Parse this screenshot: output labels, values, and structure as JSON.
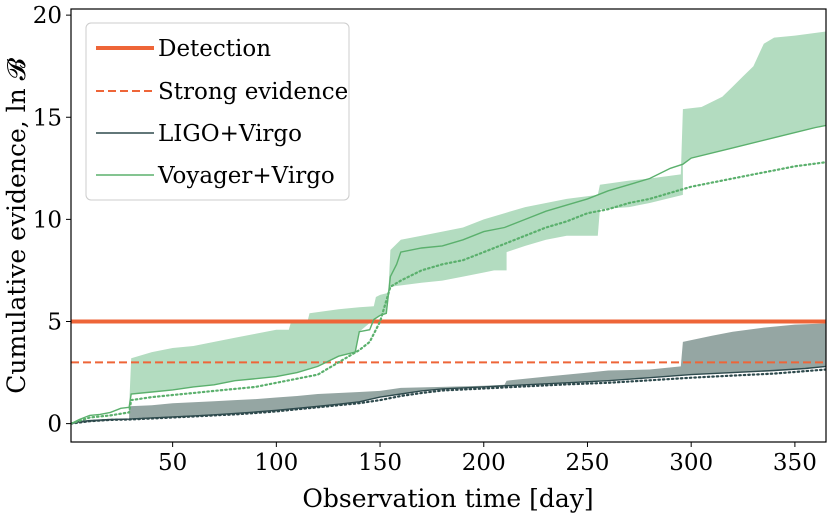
{
  "chart_data": {
    "type": "line",
    "title": "",
    "xlabel": "Observation time [day]",
    "ylabel": "Cumulative evidence, ln 𝓑",
    "xlim": [
      1,
      365
    ],
    "ylim": [
      -0.9,
      20.3
    ],
    "xticks": [
      50,
      100,
      150,
      200,
      250,
      300,
      350
    ],
    "yticks": [
      0,
      5,
      10,
      15,
      20
    ],
    "legend_position": "top-left",
    "thresholds": [
      {
        "name": "Detection",
        "value": 5,
        "style": "solid",
        "color": "#EE6538"
      },
      {
        "name": "Strong evidence",
        "value": 3,
        "style": "dashed",
        "color": "#EE6538"
      }
    ],
    "series": [
      {
        "name": "LIGO+Virgo",
        "color": "#2E4A4D",
        "band_color": "#95A6A3",
        "line": [
          [
            1,
            0
          ],
          [
            5,
            0.1
          ],
          [
            10,
            0.15
          ],
          [
            20,
            0.2
          ],
          [
            29,
            0.22
          ],
          [
            40,
            0.28
          ],
          [
            50,
            0.33
          ],
          [
            60,
            0.38
          ],
          [
            70,
            0.43
          ],
          [
            80,
            0.5
          ],
          [
            90,
            0.57
          ],
          [
            100,
            0.65
          ],
          [
            110,
            0.75
          ],
          [
            120,
            0.85
          ],
          [
            130,
            0.95
          ],
          [
            140,
            1.07
          ],
          [
            150,
            1.3
          ],
          [
            160,
            1.45
          ],
          [
            170,
            1.6
          ],
          [
            180,
            1.7
          ],
          [
            190,
            1.75
          ],
          [
            200,
            1.8
          ],
          [
            220,
            1.9
          ],
          [
            240,
            2.0
          ],
          [
            260,
            2.1
          ],
          [
            280,
            2.25
          ],
          [
            300,
            2.4
          ],
          [
            320,
            2.5
          ],
          [
            340,
            2.6
          ],
          [
            355,
            2.7
          ],
          [
            365,
            2.8
          ]
        ],
        "dotted": [
          [
            1,
            0
          ],
          [
            10,
            0.12
          ],
          [
            20,
            0.18
          ],
          [
            29,
            0.2
          ],
          [
            40,
            0.25
          ],
          [
            50,
            0.3
          ],
          [
            60,
            0.35
          ],
          [
            70,
            0.4
          ],
          [
            80,
            0.45
          ],
          [
            90,
            0.52
          ],
          [
            100,
            0.6
          ],
          [
            110,
            0.7
          ],
          [
            120,
            0.8
          ],
          [
            130,
            0.9
          ],
          [
            140,
            1.0
          ],
          [
            150,
            1.15
          ],
          [
            160,
            1.35
          ],
          [
            170,
            1.5
          ],
          [
            180,
            1.62
          ],
          [
            200,
            1.72
          ],
          [
            220,
            1.82
          ],
          [
            240,
            1.92
          ],
          [
            260,
            2.0
          ],
          [
            280,
            2.12
          ],
          [
            300,
            2.25
          ],
          [
            320,
            2.35
          ],
          [
            340,
            2.45
          ],
          [
            365,
            2.65
          ]
        ],
        "band_upper": [
          [
            29,
            0.22
          ],
          [
            29,
            0.85
          ],
          [
            40,
            0.9
          ],
          [
            50,
            1.0
          ],
          [
            60,
            1.05
          ],
          [
            70,
            1.1
          ],
          [
            80,
            1.15
          ],
          [
            90,
            1.2
          ],
          [
            100,
            1.28
          ],
          [
            110,
            1.35
          ],
          [
            120,
            1.45
          ],
          [
            130,
            1.5
          ],
          [
            140,
            1.55
          ],
          [
            150,
            1.6
          ],
          [
            160,
            1.75
          ],
          [
            180,
            1.8
          ],
          [
            200,
            1.85
          ],
          [
            210,
            1.9
          ],
          [
            211,
            2.1
          ],
          [
            230,
            2.3
          ],
          [
            250,
            2.5
          ],
          [
            260,
            2.6
          ],
          [
            280,
            2.65
          ],
          [
            295,
            2.8
          ],
          [
            296,
            4.0
          ],
          [
            310,
            4.3
          ],
          [
            320,
            4.5
          ],
          [
            335,
            4.7
          ],
          [
            350,
            4.85
          ],
          [
            365,
            4.9
          ]
        ]
      },
      {
        "name": "Voyager+Virgo",
        "color": "#5BB06D",
        "band_color": "#B3DCC0",
        "line": [
          [
            1,
            0
          ],
          [
            5,
            0.2
          ],
          [
            10,
            0.4
          ],
          [
            15,
            0.45
          ],
          [
            20,
            0.55
          ],
          [
            25,
            0.75
          ],
          [
            29,
            0.8
          ],
          [
            30,
            1.45
          ],
          [
            40,
            1.55
          ],
          [
            50,
            1.65
          ],
          [
            60,
            1.8
          ],
          [
            70,
            1.9
          ],
          [
            80,
            2.1
          ],
          [
            90,
            2.2
          ],
          [
            100,
            2.3
          ],
          [
            110,
            2.5
          ],
          [
            120,
            2.8
          ],
          [
            130,
            3.3
          ],
          [
            138,
            3.5
          ],
          [
            140,
            4.5
          ],
          [
            145,
            4.6
          ],
          [
            147,
            5.1
          ],
          [
            150,
            5.3
          ],
          [
            153,
            5.4
          ],
          [
            155,
            7.2
          ],
          [
            158,
            7.8
          ],
          [
            160,
            8.4
          ],
          [
            170,
            8.6
          ],
          [
            180,
            8.7
          ],
          [
            190,
            9.0
          ],
          [
            200,
            9.4
          ],
          [
            210,
            9.6
          ],
          [
            220,
            10.0
          ],
          [
            230,
            10.4
          ],
          [
            240,
            10.7
          ],
          [
            250,
            11.0
          ],
          [
            260,
            11.4
          ],
          [
            270,
            11.7
          ],
          [
            280,
            12.0
          ],
          [
            290,
            12.5
          ],
          [
            296,
            12.7
          ],
          [
            300,
            13.0
          ],
          [
            320,
            13.5
          ],
          [
            340,
            14.0
          ],
          [
            360,
            14.5
          ],
          [
            365,
            14.6
          ]
        ],
        "dotted": [
          [
            1,
            0
          ],
          [
            10,
            0.3
          ],
          [
            20,
            0.4
          ],
          [
            29,
            0.55
          ],
          [
            30,
            1.15
          ],
          [
            40,
            1.3
          ],
          [
            50,
            1.4
          ],
          [
            60,
            1.5
          ],
          [
            70,
            1.6
          ],
          [
            80,
            1.7
          ],
          [
            90,
            1.8
          ],
          [
            100,
            2.0
          ],
          [
            110,
            2.2
          ],
          [
            120,
            2.4
          ],
          [
            130,
            3.0
          ],
          [
            140,
            3.6
          ],
          [
            145,
            4.0
          ],
          [
            150,
            5.0
          ],
          [
            155,
            6.7
          ],
          [
            160,
            7.0
          ],
          [
            170,
            7.5
          ],
          [
            180,
            7.8
          ],
          [
            190,
            8.0
          ],
          [
            200,
            8.4
          ],
          [
            210,
            8.8
          ],
          [
            220,
            9.2
          ],
          [
            230,
            9.6
          ],
          [
            240,
            9.9
          ],
          [
            250,
            10.3
          ],
          [
            260,
            10.5
          ],
          [
            270,
            10.8
          ],
          [
            280,
            11.0
          ],
          [
            290,
            11.3
          ],
          [
            300,
            11.6
          ],
          [
            310,
            11.8
          ],
          [
            320,
            12.0
          ],
          [
            330,
            12.2
          ],
          [
            340,
            12.4
          ],
          [
            350,
            12.6
          ],
          [
            365,
            12.8
          ]
        ],
        "band_upper": [
          [
            29,
            0.8
          ],
          [
            30,
            3.2
          ],
          [
            40,
            3.5
          ],
          [
            50,
            3.7
          ],
          [
            60,
            3.8
          ],
          [
            70,
            4.0
          ],
          [
            80,
            4.2
          ],
          [
            90,
            4.4
          ],
          [
            100,
            4.6
          ],
          [
            106,
            4.6
          ],
          [
            107,
            4.95
          ],
          [
            115,
            5.0
          ],
          [
            116,
            5.4
          ],
          [
            130,
            5.6
          ],
          [
            140,
            5.7
          ],
          [
            147,
            5.75
          ],
          [
            148,
            6.2
          ],
          [
            150,
            6.3
          ],
          [
            154,
            6.4
          ],
          [
            155,
            8.5
          ],
          [
            160,
            9.0
          ],
          [
            170,
            9.2
          ],
          [
            180,
            9.4
          ],
          [
            190,
            9.6
          ],
          [
            200,
            10.0
          ],
          [
            210,
            10.3
          ],
          [
            220,
            10.6
          ],
          [
            230,
            10.8
          ],
          [
            240,
            11.0
          ],
          [
            255,
            11.2
          ],
          [
            256,
            11.7
          ],
          [
            270,
            11.9
          ],
          [
            280,
            12.0
          ],
          [
            295,
            12.2
          ],
          [
            296,
            15.4
          ],
          [
            305,
            15.5
          ],
          [
            315,
            16.0
          ],
          [
            320,
            16.5
          ],
          [
            325,
            17.0
          ],
          [
            330,
            17.5
          ],
          [
            335,
            18.6
          ],
          [
            340,
            18.9
          ],
          [
            350,
            19.0
          ],
          [
            365,
            19.2
          ]
        ],
        "band_lower": [
          [
            29,
            0.8
          ],
          [
            30,
            1.45
          ],
          [
            40,
            1.55
          ],
          [
            50,
            1.65
          ],
          [
            60,
            1.8
          ],
          [
            70,
            1.9
          ],
          [
            80,
            2.1
          ],
          [
            90,
            2.2
          ],
          [
            100,
            2.3
          ],
          [
            110,
            2.5
          ],
          [
            120,
            2.8
          ],
          [
            130,
            3.3
          ],
          [
            138,
            3.5
          ],
          [
            140,
            4.5
          ],
          [
            147,
            5.1
          ],
          [
            150,
            5.3
          ],
          [
            153,
            5.4
          ],
          [
            155,
            6.7
          ],
          [
            170,
            6.9
          ],
          [
            180,
            7.0
          ],
          [
            190,
            7.2
          ],
          [
            200,
            7.4
          ],
          [
            205,
            7.5
          ],
          [
            211,
            7.5
          ],
          [
            211,
            8.4
          ],
          [
            220,
            8.7
          ],
          [
            230,
            9.0
          ],
          [
            240,
            9.2
          ],
          [
            255,
            9.2
          ],
          [
            256,
            10.5
          ],
          [
            270,
            10.6
          ],
          [
            280,
            10.8
          ],
          [
            296,
            11.2
          ],
          [
            296,
            12.7
          ],
          [
            300,
            13.0
          ],
          [
            320,
            13.5
          ],
          [
            340,
            14.0
          ],
          [
            360,
            14.5
          ],
          [
            365,
            14.6
          ]
        ]
      }
    ]
  }
}
